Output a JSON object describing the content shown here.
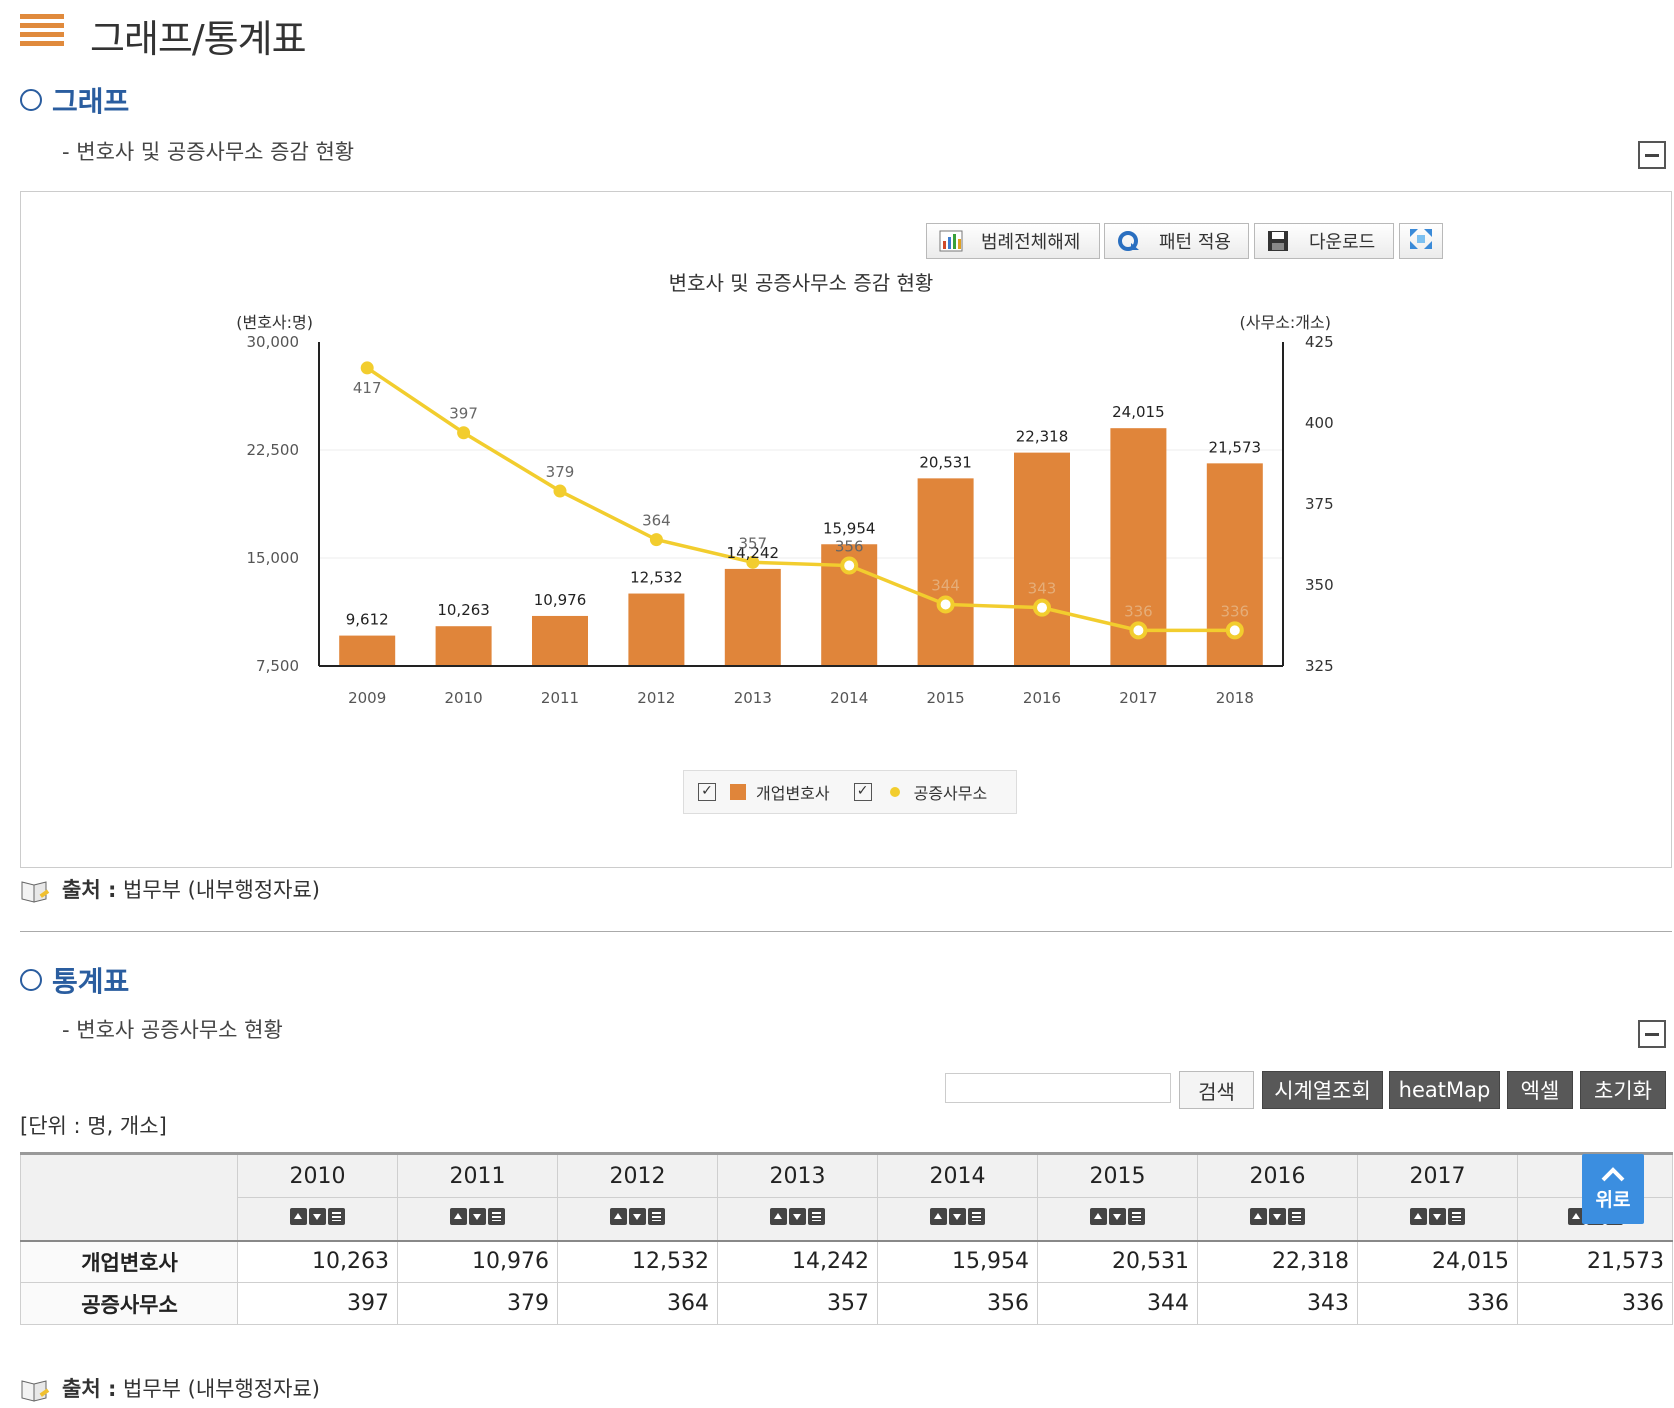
{
  "header": {
    "title": "그래프/통계표"
  },
  "graph_section": {
    "title": "그래프",
    "subtitle": "- 변호사 및 공증사무소 증감 현황",
    "toolbar": {
      "legend_off_label": "범례전체해제",
      "pattern_label": "패턴 적용",
      "download_label": "다운로드"
    },
    "source_label": "출처 :",
    "source_text": " 법무부 (내부행정자료)"
  },
  "chart_data": {
    "type": "bar",
    "title": "변호사 및 공증사무소 증감 현황",
    "categories": [
      "2009",
      "2010",
      "2011",
      "2012",
      "2013",
      "2014",
      "2015",
      "2016",
      "2017",
      "2018"
    ],
    "y_left_label": "(변호사:명)",
    "y_right_label": "(사무소:개소)",
    "y_left_ticks": [
      "30,000",
      "22,500",
      "15,000",
      "7,500"
    ],
    "y_right_ticks": [
      "425",
      "400",
      "375",
      "350",
      "325"
    ],
    "ylim_left": [
      7500,
      30000
    ],
    "ylim_right": [
      325,
      425
    ],
    "grid": true,
    "legend_position": "bottom-center",
    "series": [
      {
        "name": "개업변호사",
        "type": "bar",
        "axis": "left",
        "color": "#e0853a",
        "values": [
          9612,
          10263,
          10976,
          12532,
          14242,
          15954,
          20531,
          22318,
          24015,
          21573
        ],
        "labels": [
          "9,612",
          "10,263",
          "10,976",
          "12,532",
          "14,242",
          "15,954",
          "20,531",
          "22,318",
          "24,015",
          "21,573"
        ]
      },
      {
        "name": "공증사무소",
        "type": "line",
        "axis": "right",
        "color": "#f2cd2e",
        "values": [
          417,
          397,
          379,
          364,
          357,
          356,
          344,
          343,
          336,
          336
        ],
        "labels": [
          "417",
          "397",
          "379",
          "364",
          "357",
          "356",
          "344",
          "343",
          "336",
          "336"
        ]
      }
    ]
  },
  "table_section": {
    "title": "통계표",
    "subtitle": "- 변호사 공증사무소 현황",
    "search_placeholder": "",
    "search_label": "검색",
    "timeseries_label": "시계열조회",
    "heatmap_label": "heatMap",
    "excel_label": "엑셀",
    "reset_label": "초기화",
    "unit_label": "[단위 : 명, 개소]",
    "columns": [
      "2010",
      "2011",
      "2012",
      "2013",
      "2014",
      "2015",
      "2016",
      "2017",
      "2018"
    ],
    "last_col_visible": "20",
    "rows": [
      {
        "label": "개업변호사",
        "values": [
          "10,263",
          "10,976",
          "12,532",
          "14,242",
          "15,954",
          "20,531",
          "22,318",
          "24,015",
          "21,573"
        ]
      },
      {
        "label": "공증사무소",
        "values": [
          "397",
          "379",
          "364",
          "357",
          "356",
          "344",
          "343",
          "336",
          "336"
        ]
      }
    ],
    "to_top_label": "위로",
    "source_label": "출처 :",
    "source_text": " 법무부 (내부행정자료)"
  },
  "colors": {
    "accent_orange": "#e08a3c",
    "section_blue": "#2a5d9f",
    "bar_orange": "#e0853a",
    "line_yellow": "#f2cd2e",
    "to_top_blue": "#3b8ee0"
  }
}
